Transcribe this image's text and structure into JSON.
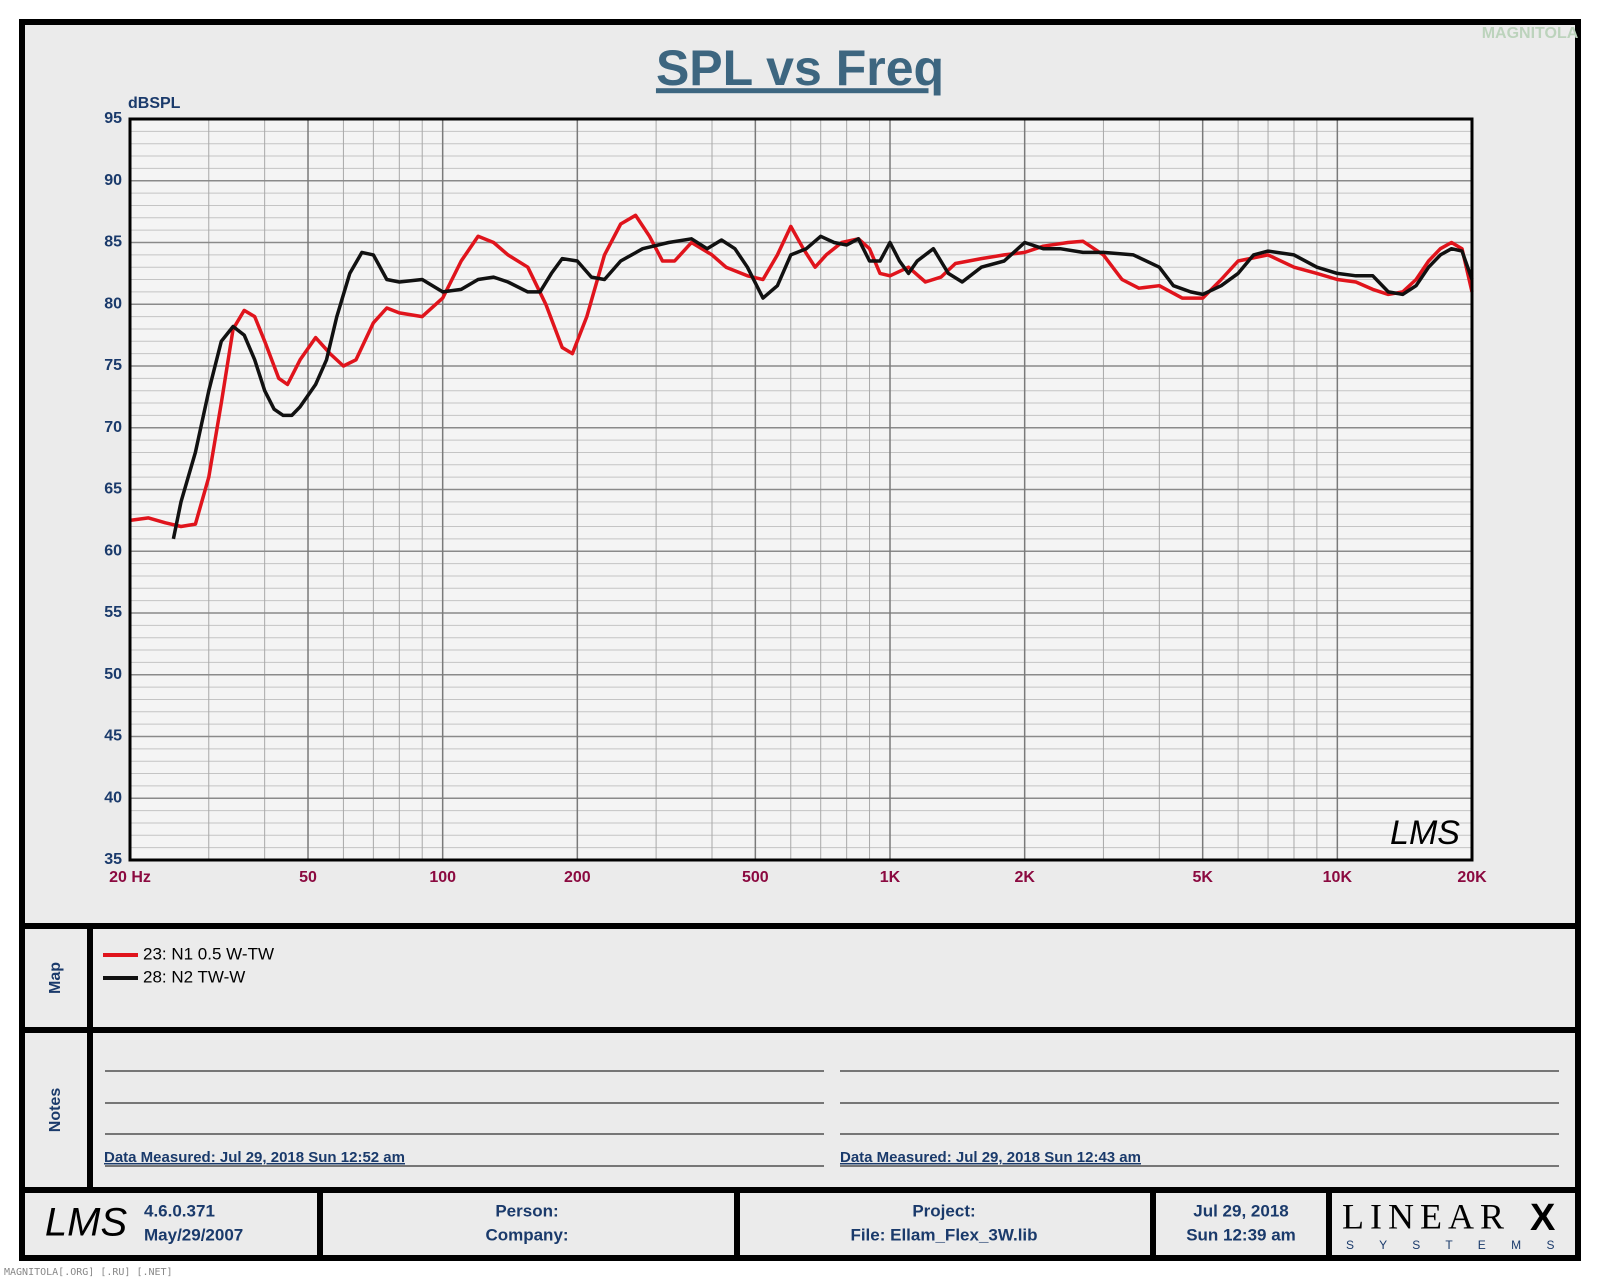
{
  "chart_data": {
    "type": "line",
    "title": "SPL vs Freq",
    "y_label": "dBSPL",
    "xscale": "log",
    "grid": true,
    "xlim": [
      20,
      20000
    ],
    "ylim": [
      35,
      95
    ],
    "xticks": [
      {
        "value": 20,
        "label": "20  Hz"
      },
      50,
      100,
      200,
      500,
      {
        "value": 1000,
        "label": "1K"
      },
      {
        "value": 2000,
        "label": "2K"
      },
      {
        "value": 5000,
        "label": "5K"
      },
      {
        "value": 10000,
        "label": "10K"
      },
      {
        "value": 20000,
        "label": "20K"
      }
    ],
    "xminorticks": [
      30,
      40,
      60,
      70,
      80,
      90,
      300,
      400,
      600,
      700,
      800,
      900,
      3000,
      4000,
      6000,
      7000,
      8000,
      9000
    ],
    "yticks": [
      35,
      40,
      45,
      50,
      55,
      60,
      65,
      70,
      75,
      80,
      85,
      90,
      95
    ],
    "yminorticks": [
      36,
      37,
      38,
      39,
      41,
      42,
      43,
      44,
      46,
      47,
      48,
      49,
      51,
      52,
      53,
      54,
      56,
      57,
      58,
      59,
      61,
      62,
      63,
      64,
      66,
      67,
      68,
      69,
      71,
      72,
      73,
      74,
      76,
      77,
      78,
      79,
      81,
      82,
      83,
      84,
      86,
      87,
      88,
      89,
      91,
      92,
      93,
      94
    ],
    "series": [
      {
        "name": "23: N1 0.5 W-TW",
        "color": "#e0141c",
        "x": [
          20,
          22,
          24,
          26,
          28,
          30,
          32,
          34,
          36,
          38,
          40,
          43,
          45,
          48,
          52,
          56,
          60,
          64,
          70,
          75,
          80,
          90,
          100,
          110,
          120,
          130,
          140,
          155,
          170,
          185,
          195,
          210,
          230,
          250,
          270,
          290,
          310,
          330,
          360,
          400,
          430,
          480,
          520,
          560,
          600,
          640,
          680,
          720,
          780,
          850,
          900,
          950,
          1000,
          1100,
          1200,
          1300,
          1400,
          1600,
          1800,
          2000,
          2200,
          2500,
          2700,
          3000,
          3300,
          3600,
          4000,
          4500,
          5000,
          5500,
          6000,
          7000,
          8000,
          9000,
          10000,
          11000,
          12000,
          13000,
          14000,
          15000,
          16000,
          17000,
          18000,
          19000,
          20000
        ],
        "values": [
          62.5,
          62.7,
          62.3,
          62,
          62.2,
          66,
          72,
          78,
          79.5,
          79,
          77,
          74,
          73.5,
          75.5,
          77.3,
          76,
          75,
          75.5,
          78.5,
          79.7,
          79.3,
          79,
          80.5,
          83.5,
          85.5,
          85,
          84,
          83,
          80,
          76.5,
          76,
          79,
          84,
          86.5,
          87.2,
          85.5,
          83.5,
          83.5,
          85,
          84,
          83,
          82.3,
          82,
          84,
          86.3,
          84.5,
          83,
          84,
          85,
          85.3,
          84.5,
          82.5,
          82.3,
          83,
          81.8,
          82.2,
          83.3,
          83.7,
          84,
          84.2,
          84.7,
          85,
          85.1,
          84,
          82,
          81.3,
          81.5,
          80.5,
          80.5,
          82,
          83.5,
          84,
          83,
          82.5,
          82,
          81.8,
          81.2,
          80.8,
          81,
          82,
          83.5,
          84.5,
          85,
          84.5,
          81
        ]
      },
      {
        "name": "28: N2 TW-W",
        "color": "#111111",
        "x": [
          25,
          26,
          28,
          30,
          32,
          34,
          36,
          38,
          40,
          42,
          44,
          46,
          48,
          52,
          55,
          58,
          62,
          66,
          70,
          75,
          80,
          90,
          100,
          110,
          120,
          130,
          140,
          155,
          165,
          175,
          185,
          200,
          215,
          230,
          250,
          280,
          320,
          360,
          390,
          420,
          450,
          480,
          520,
          560,
          600,
          650,
          700,
          750,
          800,
          850,
          900,
          950,
          1000,
          1050,
          1100,
          1150,
          1250,
          1350,
          1450,
          1600,
          1800,
          2000,
          2200,
          2400,
          2700,
          3000,
          3500,
          4000,
          4300,
          4700,
          5000,
          5500,
          6000,
          6500,
          7000,
          8000,
          9000,
          10000,
          11000,
          12000,
          13000,
          14000,
          15000,
          16000,
          17000,
          18000,
          19000,
          20000
        ],
        "values": [
          61,
          64,
          68,
          73,
          77,
          78.2,
          77.5,
          75.5,
          73,
          71.5,
          71,
          71,
          71.7,
          73.5,
          75.5,
          79,
          82.5,
          84.2,
          84,
          82,
          81.8,
          82,
          81,
          81.2,
          82,
          82.2,
          81.8,
          81,
          81,
          82.5,
          83.7,
          83.5,
          82.2,
          82,
          83.5,
          84.5,
          85,
          85.3,
          84.5,
          85.2,
          84.5,
          83,
          80.5,
          81.5,
          84,
          84.5,
          85.5,
          85,
          84.8,
          85.3,
          83.5,
          83.5,
          85,
          83.5,
          82.5,
          83.5,
          84.5,
          82.5,
          81.8,
          83,
          83.5,
          85,
          84.5,
          84.5,
          84.2,
          84.2,
          84,
          83,
          81.5,
          81,
          80.8,
          81.5,
          82.5,
          84,
          84.3,
          84,
          83,
          82.5,
          82.3,
          82.3,
          81,
          80.8,
          81.5,
          83,
          84,
          84.5,
          84.3,
          82
        ]
      }
    ]
  },
  "logo": "LMS",
  "watermark_top": "MAGNITOLA",
  "watermark_bottom": "MAGNITOLA[.ORG] [.RU] [.NET]",
  "map_label": "Map",
  "notes_label": "Notes",
  "notes": [
    "Data Measured: Jul 29, 2018  Sun 12:52 am",
    "Data Measured: Jul 29, 2018  Sun 12:43 am"
  ],
  "footer": {
    "logo": "LMS",
    "version": "4.6.0.371",
    "version_date": "May/29/2007",
    "person": "Person:",
    "company": "Company:",
    "project": "Project:",
    "file": "File: Ellam_Flex_3W.lib",
    "date": "Jul 29, 2018",
    "time": "Sun 12:39 am",
    "brand": "LINEAR",
    "brand_x": "X",
    "brand_sub": "S Y S T E M S"
  }
}
